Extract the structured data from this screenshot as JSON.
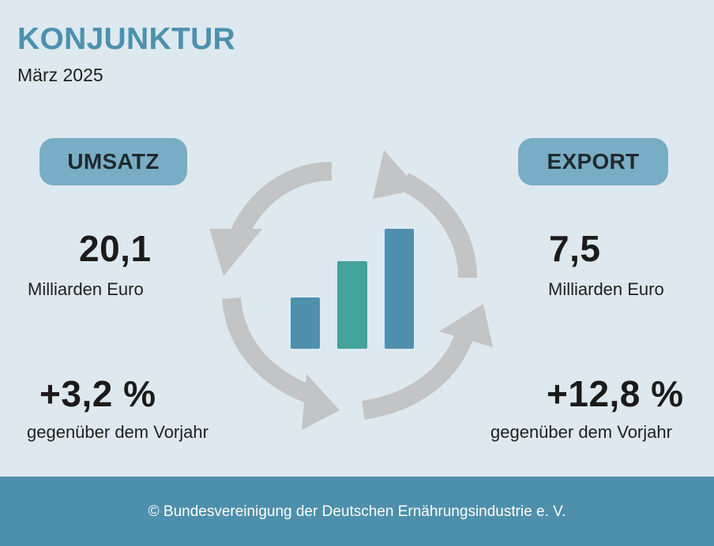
{
  "header": {
    "title": "KONJUNKTUR",
    "subtitle": "März 2025"
  },
  "left_panel": {
    "label": "UMSATZ",
    "value": "20,1",
    "value_unit": "Milliarden Euro",
    "change": "+3,2 %",
    "change_caption": "gegenüber dem Vorjahr"
  },
  "right_panel": {
    "label": "EXPORT",
    "value": "7,5",
    "value_unit": "Milliarden Euro",
    "change": "+12,8 %",
    "change_caption": "gegenüber dem Vorjahr"
  },
  "graphic": {
    "icon": "cycle-bar-chart-icon",
    "bar_levels": [
      0.43,
      0.73,
      1.0
    ],
    "colors": {
      "arrow": "#c2c4c6",
      "bar_1": "#4f8fae",
      "bar_2": "#43a29a",
      "bar_3": "#4f8fae"
    }
  },
  "footer": {
    "copyright": "© Bundesvereinigung der Deutschen Ernährungsindustrie e. V."
  },
  "colors": {
    "background": "#dde9ef",
    "title": "#4c91ad",
    "pill": "#79adc5",
    "footer": "#4e8fab"
  }
}
